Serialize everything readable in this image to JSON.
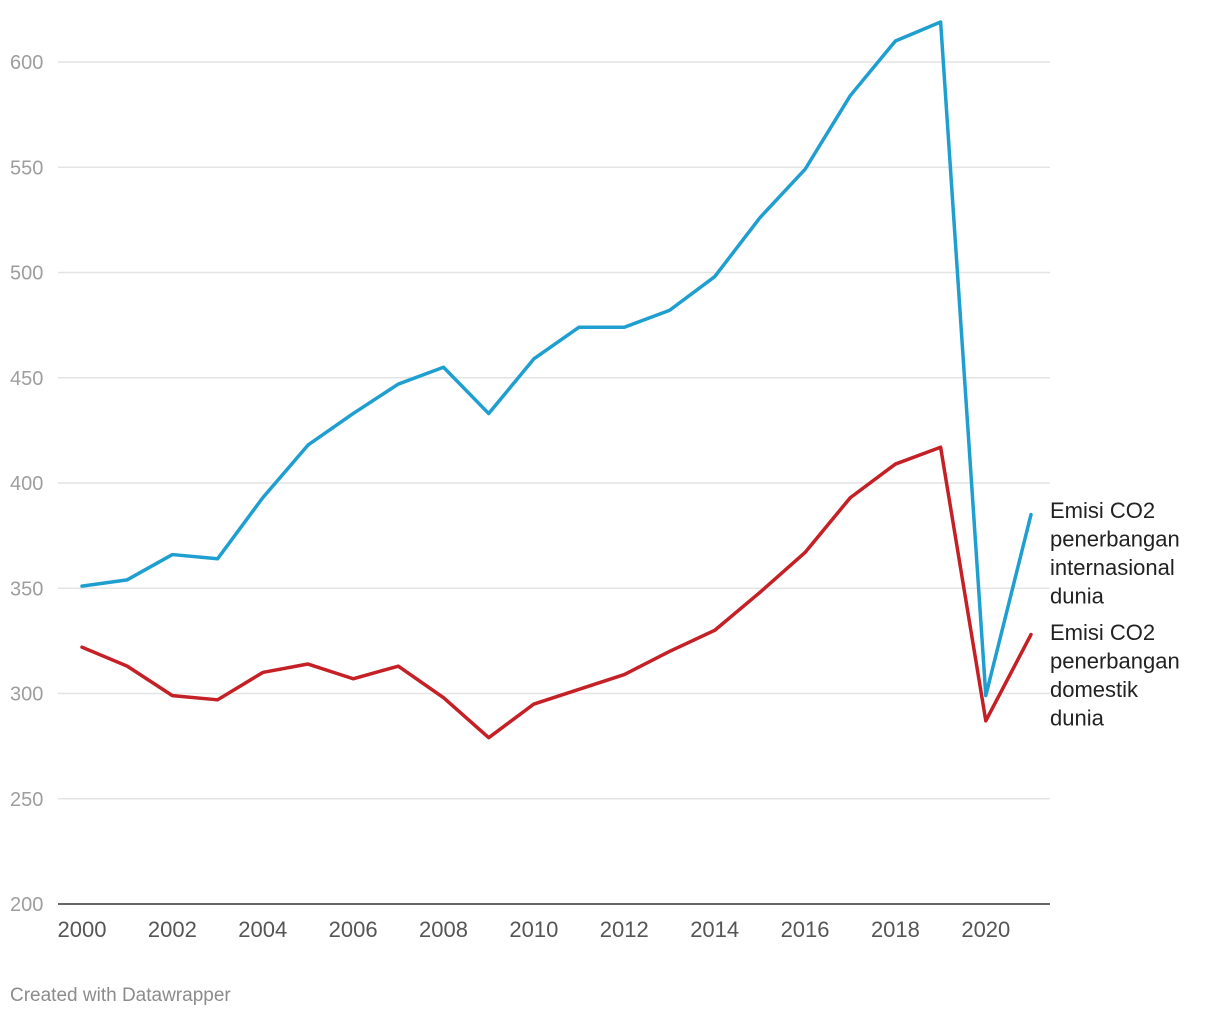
{
  "chart_data": {
    "type": "line",
    "title": "",
    "xlabel": "",
    "ylabel": "",
    "ylim": [
      200,
      620
    ],
    "yticks": [
      200,
      250,
      300,
      350,
      400,
      450,
      500,
      550,
      600
    ],
    "xticks": [
      2000,
      2002,
      2004,
      2006,
      2008,
      2010,
      2012,
      2014,
      2016,
      2018,
      2020
    ],
    "x": [
      2000,
      2001,
      2002,
      2003,
      2004,
      2005,
      2006,
      2007,
      2008,
      2009,
      2010,
      2011,
      2012,
      2013,
      2014,
      2015,
      2016,
      2017,
      2018,
      2019,
      2020,
      2021
    ],
    "series": [
      {
        "name": "international",
        "label_lines": [
          "Emisi CO2",
          "penerbangan",
          "internasional",
          "dunia"
        ],
        "color": "#1f9fd0",
        "values": [
          351,
          354,
          366,
          364,
          393,
          418,
          433,
          447,
          455,
          433,
          459,
          474,
          474,
          482,
          498,
          526,
          549,
          584,
          610,
          619,
          299,
          385
        ]
      },
      {
        "name": "domestic",
        "label_lines": [
          "Emisi CO2",
          "penerbangan",
          "domestik",
          "dunia"
        ],
        "color": "#c42025",
        "values": [
          322,
          313,
          299,
          297,
          310,
          314,
          307,
          313,
          298,
          279,
          295,
          302,
          309,
          320,
          330,
          348,
          367,
          393,
          409,
          417,
          287,
          328
        ]
      }
    ]
  },
  "footer": {
    "credit": "Created with Datawrapper"
  }
}
